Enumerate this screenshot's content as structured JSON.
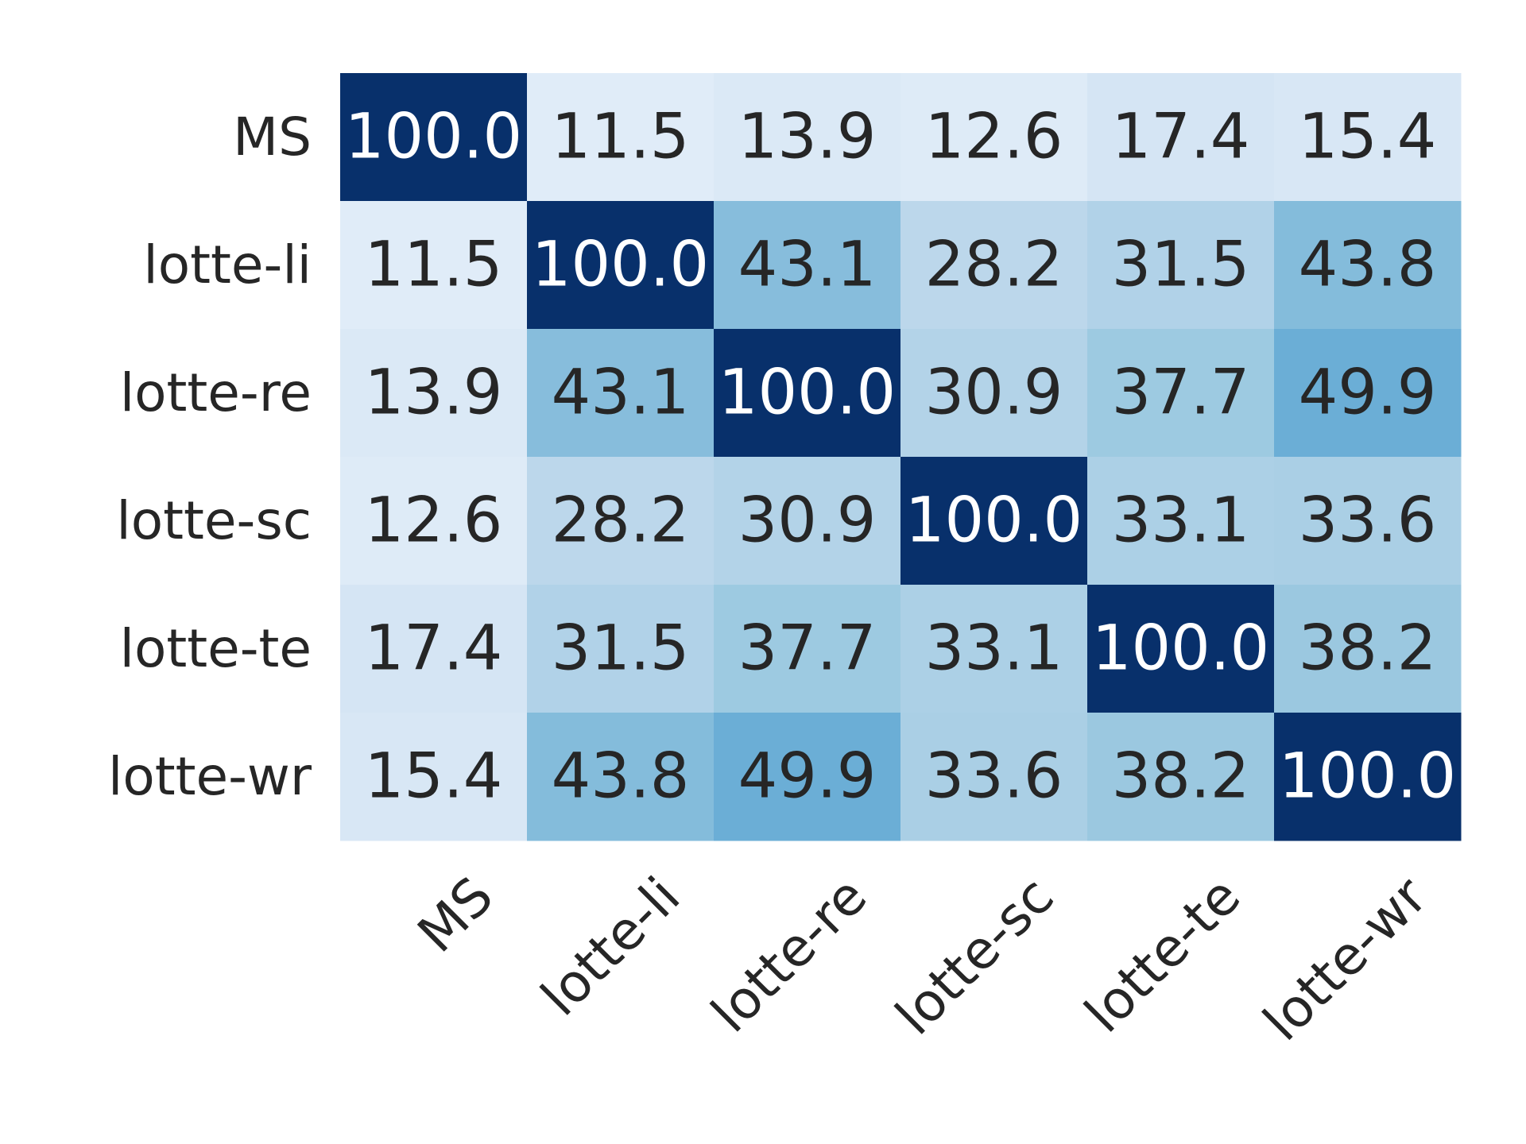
{
  "chart_data": {
    "type": "heatmap",
    "title": "",
    "xlabel": "",
    "ylabel": "",
    "x_categories": [
      "MS",
      "lotte-li",
      "lotte-re",
      "lotte-sc",
      "lotte-te",
      "lotte-wr"
    ],
    "y_categories": [
      "MS",
      "lotte-li",
      "lotte-re",
      "lotte-sc",
      "lotte-te",
      "lotte-wr"
    ],
    "values": [
      [
        100.0,
        11.5,
        13.9,
        12.6,
        17.4,
        15.4
      ],
      [
        11.5,
        100.0,
        43.1,
        28.2,
        31.5,
        43.8
      ],
      [
        13.9,
        43.1,
        100.0,
        30.9,
        37.7,
        49.9
      ],
      [
        12.6,
        28.2,
        30.9,
        100.0,
        33.1,
        33.6
      ],
      [
        17.4,
        31.5,
        37.7,
        33.1,
        100.0,
        38.2
      ],
      [
        15.4,
        43.8,
        49.9,
        33.6,
        38.2,
        100.0
      ]
    ],
    "value_format": "0.1f",
    "colormap": "Blues",
    "value_range": [
      0,
      100
    ],
    "x_tick_rotation": 45,
    "colorbar": false,
    "text_color_light": "#ffffff",
    "text_color_dark": "#262626"
  }
}
